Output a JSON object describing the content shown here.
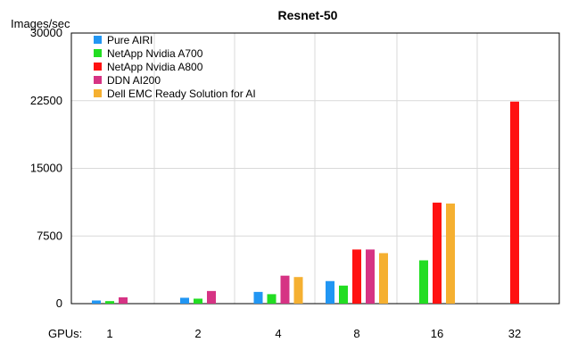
{
  "chart_data": {
    "type": "bar",
    "title": "Resnet-50",
    "ylabel": "Images/sec",
    "xlabel": "GPUs:",
    "ylim": [
      0,
      30000
    ],
    "yticks": [
      0,
      7500,
      15000,
      22500,
      30000
    ],
    "ytick_labels": [
      "0",
      "7500",
      "15000",
      "22500",
      "30000"
    ],
    "categories": [
      "1",
      "2",
      "4",
      "8",
      "16",
      "32"
    ],
    "grid": true,
    "legend_position": "top-left",
    "series": [
      {
        "name": "Pure AIRI",
        "color": "#2196f3",
        "values": [
          350,
          650,
          1300,
          2500,
          null,
          null
        ]
      },
      {
        "name": "NetApp Nvidia A700",
        "color": "#22dd22",
        "values": [
          280,
          550,
          1050,
          2000,
          4800,
          null
        ]
      },
      {
        "name": "NetApp Nvidia A800",
        "color": "#ff1111",
        "values": [
          null,
          null,
          null,
          6000,
          11200,
          22400
        ]
      },
      {
        "name": "DDN AI200",
        "color": "#d63384",
        "values": [
          700,
          1400,
          3100,
          6000,
          null,
          null
        ]
      },
      {
        "name": "Dell EMC Ready Solution for AI",
        "color": "#f5b031",
        "values": [
          null,
          null,
          2950,
          5600,
          11100,
          null
        ]
      }
    ]
  }
}
